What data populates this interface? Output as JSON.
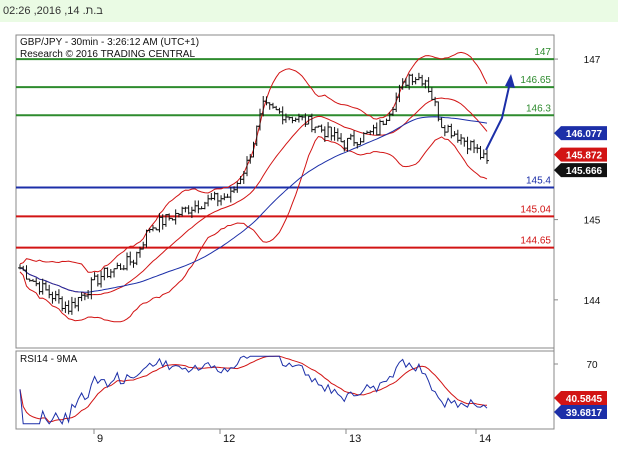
{
  "header": {
    "timestamp": "ב.ת. 14, 2016, 02:26"
  },
  "chart_data": {
    "type": "candlestick",
    "title": "GBP/JPY - 30min - 3:26:12 AM (UTC+1)",
    "subtitle": "Research © 2016 TRADING CENTRAL",
    "ylim": [
      143.4,
      147.3
    ],
    "y_ticks": [
      144,
      145,
      147
    ],
    "x_ticks": [
      "9",
      "12",
      "13",
      "14"
    ],
    "levels": [
      {
        "value": 147.0,
        "label": "147",
        "color": "#2e8b2e"
      },
      {
        "value": 146.65,
        "label": "146.65",
        "color": "#2e8b2e"
      },
      {
        "value": 146.3,
        "label": "146.3",
        "color": "#2e8b2e"
      },
      {
        "value": 145.4,
        "label": "145.4",
        "color": "#1c2fa8"
      },
      {
        "value": 145.04,
        "label": "145.04",
        "color": "#d21414"
      },
      {
        "value": 144.65,
        "label": "144.65",
        "color": "#d21414"
      }
    ],
    "price_badges": [
      {
        "value": 146.077,
        "label": "146.077",
        "color": "#1c2fa8"
      },
      {
        "value": 145.872,
        "label": "145.872",
        "color": "#d21414"
      },
      {
        "value": 145.666,
        "label": "145.666",
        "color": "#111111"
      }
    ],
    "anchors": [
      [
        0,
        144.4
      ],
      [
        5,
        144.2
      ],
      [
        15,
        143.9
      ],
      [
        25,
        144.3
      ],
      [
        35,
        144.5
      ],
      [
        40,
        144.9
      ],
      [
        45,
        145.0
      ],
      [
        55,
        145.2
      ],
      [
        65,
        145.3
      ],
      [
        70,
        145.7
      ],
      [
        75,
        146.4
      ],
      [
        90,
        146.2
      ],
      [
        100,
        145.95
      ],
      [
        110,
        146.1
      ],
      [
        120,
        146.8
      ],
      [
        125,
        146.75
      ],
      [
        130,
        146.2
      ],
      [
        135,
        146.05
      ],
      [
        140,
        145.9
      ],
      [
        144,
        145.7
      ]
    ],
    "series_count": 145,
    "rsi": {
      "label": "RSI14 - 9MA",
      "ylim": [
        20,
        80
      ],
      "y_ticks": [
        70
      ],
      "badges": [
        {
          "value": 40.5845,
          "label": "40.5845",
          "color": "#d21414"
        },
        {
          "value": 39.6817,
          "label": "39.6817",
          "color": "#1c2fa8"
        }
      ]
    }
  }
}
